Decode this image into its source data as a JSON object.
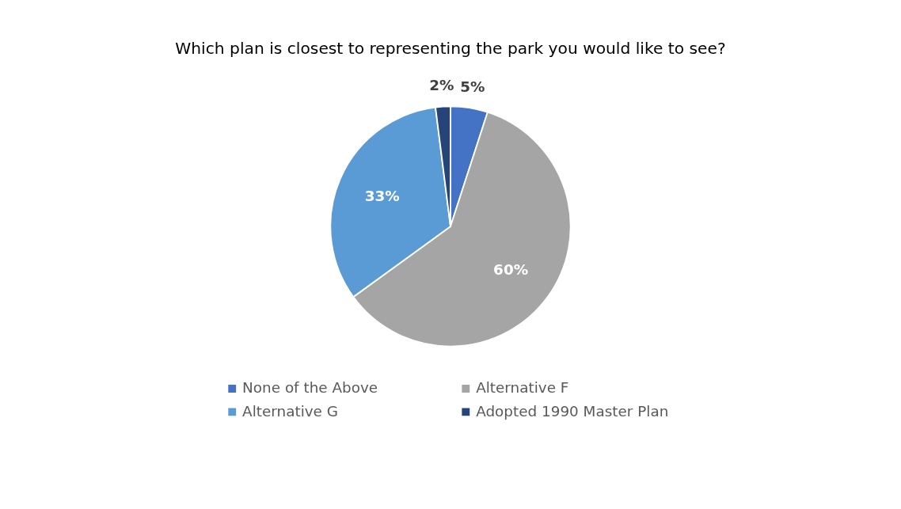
{
  "chart_data": {
    "type": "pie",
    "title": "Which plan is closest to representing the park you would like to see?",
    "categories": [
      "None of the Above",
      "Alternative F",
      "Alternative G",
      "Adopted 1990 Master Plan"
    ],
    "values": [
      5,
      60,
      33,
      2
    ],
    "colors": [
      "#4472c4",
      "#a5a5a5",
      "#5b9bd5",
      "#264478"
    ],
    "value_labels": [
      "5%",
      "60%",
      "33%",
      "2%"
    ],
    "legend": "bottom"
  }
}
